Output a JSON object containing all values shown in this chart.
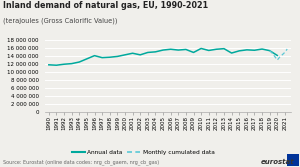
{
  "title": "Inland demand of natural gas, EU, 1990-2021",
  "subtitle": "(terajoules (Gross Calorific Value))",
  "source": "Source: Eurostat (online data codes: nrg_cb_gaem, nrg_cb_gas)",
  "bg_color": "#f0efeb",
  "annual_color": "#00a99d",
  "monthly_color": "#5bc8d6",
  "annual_years": [
    1990,
    1991,
    1992,
    1993,
    1994,
    1995,
    1996,
    1997,
    1998,
    1999,
    2000,
    2001,
    2002,
    2003,
    2004,
    2005,
    2006,
    2007,
    2008,
    2009,
    2010,
    2011,
    2012,
    2013,
    2014,
    2015,
    2016,
    2017,
    2018,
    2019,
    2020
  ],
  "annual_values": [
    11800000,
    11700000,
    11950000,
    12100000,
    12500000,
    13300000,
    14100000,
    13600000,
    13700000,
    13900000,
    14300000,
    14700000,
    14300000,
    14900000,
    15050000,
    15500000,
    15700000,
    15500000,
    15650000,
    14900000,
    15900000,
    15400000,
    15700000,
    15850000,
    14750000,
    15300000,
    15550000,
    15450000,
    15750000,
    15350000,
    14150000
  ],
  "monthly_x": [
    2019,
    2019.3,
    2019.7,
    2020.0,
    2020.3,
    2020.7,
    2021.0,
    2021.3
  ],
  "monthly_y": [
    15350000,
    14800000,
    13800000,
    13000000,
    13700000,
    14400000,
    14950000,
    15750000
  ],
  "ylim": [
    0,
    18000000
  ],
  "ytick_vals": [
    0,
    2000000,
    4000000,
    6000000,
    8000000,
    10000000,
    12000000,
    14000000,
    16000000,
    18000000
  ],
  "ytick_labels": [
    "0",
    "2 000 000",
    "4 000 000",
    "6 000 000",
    "8 000 000",
    "10 000 000",
    "12 000 000",
    "14 000 000",
    "16 000 000",
    "18 000 000"
  ],
  "xtick_years": [
    1990,
    1991,
    1992,
    1993,
    1994,
    1995,
    1996,
    1997,
    1998,
    1999,
    2000,
    2001,
    2002,
    2003,
    2004,
    2005,
    2006,
    2007,
    2008,
    2009,
    2010,
    2011,
    2012,
    2013,
    2014,
    2015,
    2016,
    2017,
    2018,
    2019,
    2020,
    2021
  ],
  "legend_annual": "Annual data",
  "legend_monthly": "Monthly cumulated data",
  "grid_color": "#ffffff",
  "title_fontsize": 5.8,
  "subtitle_fontsize": 4.8,
  "tick_fontsize": 4.0,
  "source_fontsize": 3.5
}
